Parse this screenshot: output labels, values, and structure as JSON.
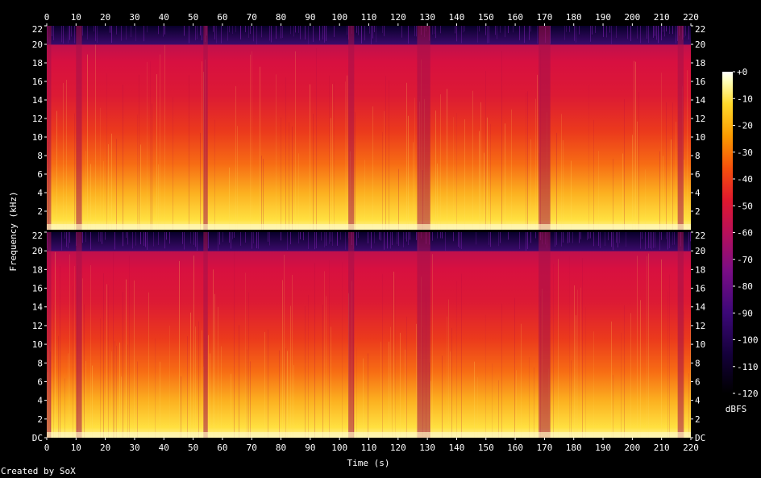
{
  "chart_data": {
    "type": "heatmap",
    "subtype": "spectrogram",
    "channels": 2,
    "xlabel": "Time (s)",
    "ylabel": "Frequency (kHz)",
    "xlim": [
      0,
      220
    ],
    "ylim": [
      0,
      22
    ],
    "x_ticks": [
      "0",
      "10",
      "20",
      "30",
      "40",
      "50",
      "60",
      "70",
      "80",
      "90",
      "100",
      "110",
      "120",
      "130",
      "140",
      "150",
      "160",
      "170",
      "180",
      "190",
      "200",
      "210",
      "220"
    ],
    "y_ticks_top": [
      "2",
      "4",
      "6",
      "8",
      "10",
      "12",
      "14",
      "16",
      "18",
      "20",
      "22"
    ],
    "y_ticks_bottom": [
      "DC",
      "2",
      "4",
      "6",
      "8",
      "10",
      "12",
      "14",
      "16",
      "18",
      "20",
      "22"
    ],
    "colorbar": {
      "label": "dBFS",
      "range": [
        -120,
        0
      ],
      "ticks": [
        "+0",
        "-10",
        "-20",
        "-30",
        "-40",
        "-50",
        "-60",
        "-70",
        "-80",
        "-90",
        "-100",
        "-110",
        "-120"
      ]
    },
    "spectral_cutoff_khz": 20,
    "quiet_segments_s": [
      [
        0,
        1.5
      ],
      [
        10,
        12
      ],
      [
        53.5,
        55
      ],
      [
        103,
        105
      ],
      [
        126.5,
        131
      ],
      [
        168,
        172
      ],
      [
        215.5,
        217.5
      ]
    ],
    "colormap": [
      "#000000",
      "#1c0050",
      "#5a0d8a",
      "#9a1070",
      "#d4143c",
      "#f03a10",
      "#fb8a00",
      "#ffd21e",
      "#ffffb4",
      "#ffffff"
    ]
  },
  "footer": {
    "credit": "Created by SoX"
  }
}
